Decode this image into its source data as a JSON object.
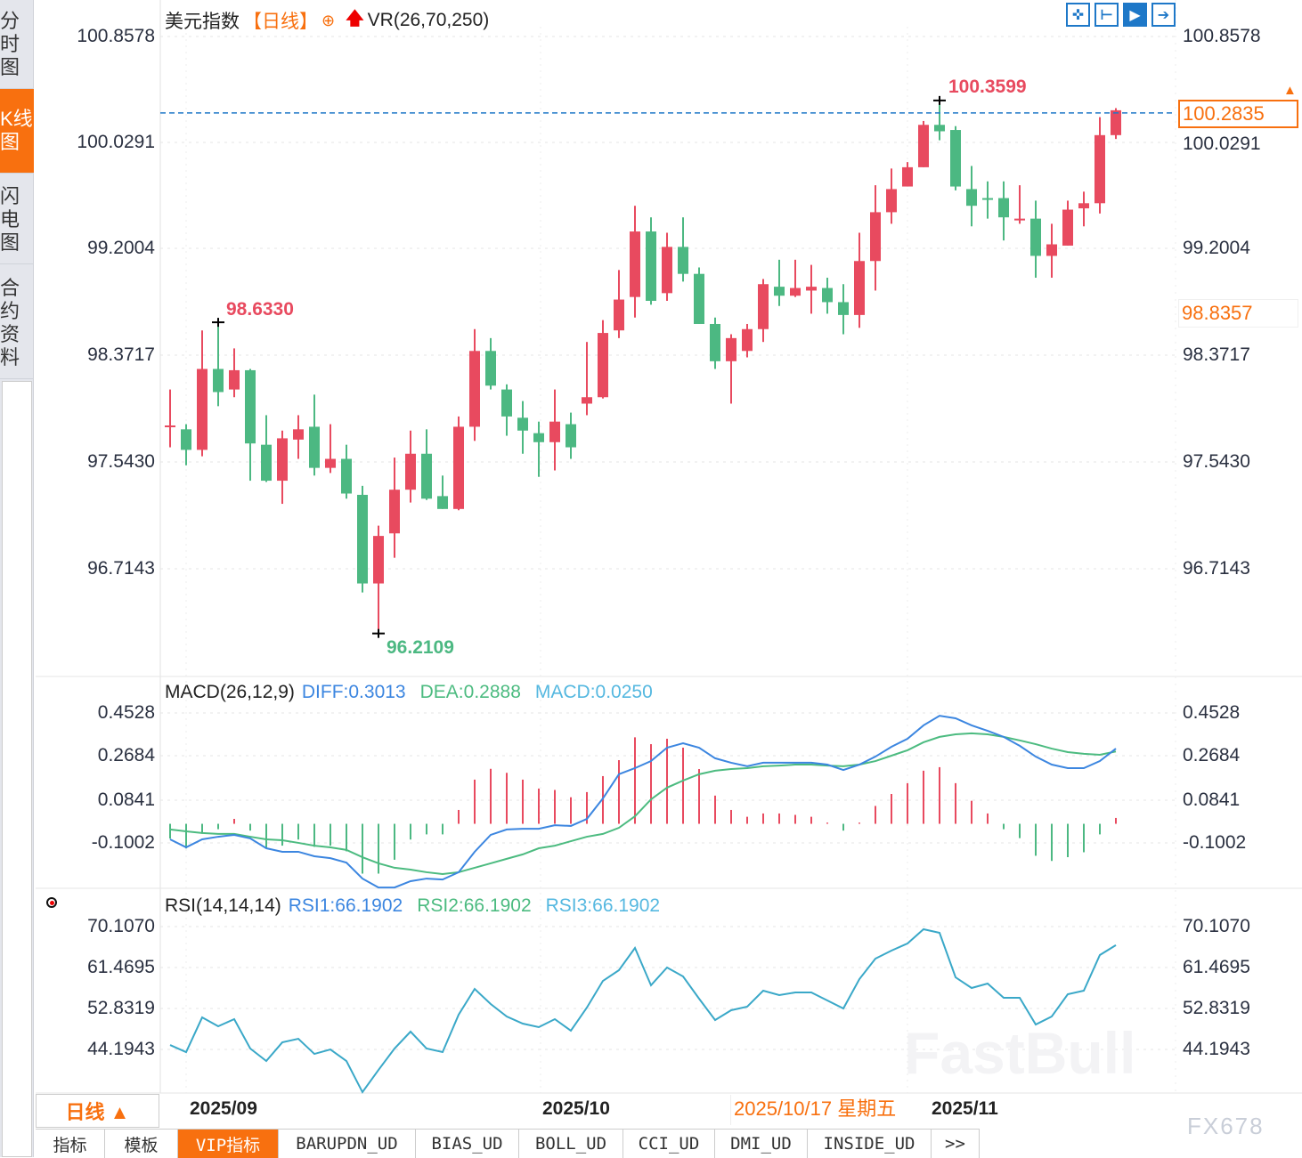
{
  "sidebar": {
    "tabs": [
      {
        "label": "分时图"
      },
      {
        "label": "K线图",
        "active": true
      },
      {
        "label": "闪电图"
      },
      {
        "label": "合约资料"
      }
    ]
  },
  "header": {
    "symbol": "美元指数",
    "period": "【日线】",
    "indicator": "VR(26,70,250)"
  },
  "toolbar": {
    "icons": [
      "crosshair-icon",
      "range-select-icon",
      "play-icon",
      "jump-to-end-icon"
    ]
  },
  "price_axis": {
    "ticks": [
      "100.8578",
      "100.0291",
      "99.2004",
      "98.3717",
      "97.5430",
      "96.7143"
    ],
    "current_price": "100.2835",
    "crosshair_price": "98.8357"
  },
  "annotations": {
    "high_left": "98.6330",
    "low": "96.2109",
    "high_right": "100.3599"
  },
  "macd": {
    "title": "MACD(26,12,9)",
    "diff": "DIFF:0.3013",
    "dea": "DEA:0.2888",
    "macd": "MACD:0.0250",
    "ticks": [
      "0.4528",
      "0.2684",
      "0.0841",
      "-0.1002"
    ]
  },
  "rsi": {
    "title": "RSI(14,14,14)",
    "rsi1": "RSI1:66.1902",
    "rsi2": "RSI2:66.1902",
    "rsi3": "RSI3:66.1902",
    "ticks": [
      "70.1070",
      "61.4695",
      "52.8319",
      "44.1943"
    ]
  },
  "xaxis": {
    "period_button": "日线 ▲",
    "dates": [
      "2025/09",
      "2025/10",
      "2025/11"
    ],
    "crosshair_date": "2025/10/17 星期五"
  },
  "bottom_tabs": [
    {
      "label": "指标"
    },
    {
      "label": "模板"
    },
    {
      "label": "VIP指标",
      "active": true
    },
    {
      "label": "BARUPDN_UD"
    },
    {
      "label": "BIAS_UD"
    },
    {
      "label": "BOLL_UD"
    },
    {
      "label": "CCI_UD"
    },
    {
      "label": "DMI_UD"
    },
    {
      "label": "INSIDE_UD"
    },
    {
      "label": ">>"
    }
  ],
  "watermark": {
    "brand": "FastBull",
    "code": "FX678"
  },
  "colors": {
    "up": "#e84a5f",
    "down": "#4cb882",
    "accent": "#f8700f",
    "diff": "#3c86e0",
    "dea": "#4cbb80",
    "macd": "#55b8e0",
    "rsi": "#3aa8c8"
  },
  "chart_data": {
    "type": "candlestick",
    "ylim": [
      96.2109,
      100.8578
    ],
    "ohlc": [
      [
        97.83,
        98.11,
        97.66,
        97.83
      ],
      [
        97.8,
        97.84,
        97.52,
        97.64
      ],
      [
        97.64,
        98.57,
        97.59,
        98.27
      ],
      [
        98.27,
        98.633,
        97.98,
        98.09
      ],
      [
        98.11,
        98.43,
        98.05,
        98.26
      ],
      [
        98.26,
        98.27,
        97.4,
        97.69
      ],
      [
        97.68,
        97.91,
        97.39,
        97.4
      ],
      [
        97.4,
        97.79,
        97.22,
        97.73
      ],
      [
        97.72,
        97.91,
        97.57,
        97.8
      ],
      [
        97.82,
        98.07,
        97.44,
        97.5
      ],
      [
        97.5,
        97.84,
        97.46,
        97.57
      ],
      [
        97.57,
        97.68,
        97.26,
        97.3
      ],
      [
        97.29,
        97.36,
        96.53,
        96.6
      ],
      [
        96.6,
        97.05,
        96.2109,
        96.97
      ],
      [
        96.99,
        97.58,
        96.8,
        97.33
      ],
      [
        97.33,
        97.79,
        97.23,
        97.61
      ],
      [
        97.61,
        97.8,
        97.25,
        97.26
      ],
      [
        97.28,
        97.44,
        97.18,
        97.18
      ],
      [
        97.18,
        97.9,
        97.17,
        97.82
      ],
      [
        97.82,
        98.58,
        97.71,
        98.41
      ],
      [
        98.41,
        98.51,
        98.11,
        98.14
      ],
      [
        98.11,
        98.15,
        97.75,
        97.9
      ],
      [
        97.89,
        98.02,
        97.61,
        97.79
      ],
      [
        97.77,
        97.86,
        97.43,
        97.7
      ],
      [
        97.7,
        98.11,
        97.48,
        97.86
      ],
      [
        97.84,
        97.93,
        97.57,
        97.66
      ],
      [
        98.0,
        98.48,
        97.91,
        98.05
      ],
      [
        98.05,
        98.65,
        98.04,
        98.55
      ],
      [
        98.57,
        99.04,
        98.51,
        98.81
      ],
      [
        98.83,
        99.54,
        98.67,
        99.34
      ],
      [
        99.34,
        99.45,
        98.77,
        98.8
      ],
      [
        98.86,
        99.33,
        98.8,
        99.22
      ],
      [
        99.22,
        99.45,
        98.95,
        99.01
      ],
      [
        99.01,
        99.06,
        98.62,
        98.62
      ],
      [
        98.62,
        98.67,
        98.27,
        98.33
      ],
      [
        98.33,
        98.54,
        98.0,
        98.51
      ],
      [
        98.41,
        98.62,
        98.36,
        98.58
      ],
      [
        98.58,
        98.97,
        98.48,
        98.93
      ],
      [
        98.91,
        99.12,
        98.76,
        98.84
      ],
      [
        98.84,
        99.12,
        98.83,
        98.9
      ],
      [
        98.88,
        99.08,
        98.7,
        98.91
      ],
      [
        98.9,
        98.98,
        98.7,
        98.79
      ],
      [
        98.79,
        98.93,
        98.54,
        98.69
      ],
      [
        98.69,
        99.33,
        98.59,
        99.11
      ],
      [
        99.11,
        99.7,
        98.88,
        99.49
      ],
      [
        99.49,
        99.83,
        99.4,
        99.67
      ],
      [
        99.69,
        99.88,
        99.69,
        99.84
      ],
      [
        99.84,
        100.2,
        99.84,
        100.17
      ],
      [
        100.17,
        100.3599,
        100.05,
        100.12
      ],
      [
        100.13,
        100.16,
        99.66,
        99.69
      ],
      [
        99.67,
        99.85,
        99.38,
        99.54
      ],
      [
        99.6,
        99.73,
        99.44,
        99.59
      ],
      [
        99.6,
        99.73,
        99.27,
        99.45
      ],
      [
        99.44,
        99.7,
        99.4,
        99.44
      ],
      [
        99.44,
        99.58,
        98.98,
        99.15
      ],
      [
        99.15,
        99.4,
        98.98,
        99.24
      ],
      [
        99.23,
        99.58,
        99.23,
        99.51
      ],
      [
        99.52,
        99.65,
        99.38,
        99.56
      ],
      [
        99.56,
        100.23,
        99.48,
        100.09
      ],
      [
        100.09,
        100.3,
        100.06,
        100.2835
      ]
    ],
    "macd_hist": [
      -0.063,
      -0.105,
      -0.042,
      -0.023,
      0.021,
      -0.029,
      -0.105,
      -0.093,
      -0.067,
      -0.098,
      -0.093,
      -0.117,
      -0.212,
      -0.212,
      -0.153,
      -0.067,
      -0.045,
      -0.045,
      0.059,
      0.188,
      0.234,
      0.217,
      0.188,
      0.15,
      0.144,
      0.113,
      0.135,
      0.203,
      0.271,
      0.368,
      0.339,
      0.362,
      0.324,
      0.233,
      0.12,
      0.059,
      0.03,
      0.044,
      0.044,
      0.038,
      0.03,
      0.005,
      -0.029,
      0.005,
      0.076,
      0.127,
      0.173,
      0.226,
      0.241,
      0.173,
      0.098,
      0.044,
      -0.023,
      -0.061,
      -0.136,
      -0.158,
      -0.142,
      -0.121,
      -0.045,
      0.025
    ],
    "diff": [
      -0.085,
      -0.119,
      -0.085,
      -0.074,
      -0.066,
      -0.081,
      -0.123,
      -0.138,
      -0.138,
      -0.157,
      -0.165,
      -0.184,
      -0.252,
      -0.29,
      -0.29,
      -0.263,
      -0.252,
      -0.256,
      -0.225,
      -0.138,
      -0.066,
      -0.043,
      -0.04,
      -0.04,
      -0.025,
      -0.028,
      0.002,
      0.089,
      0.192,
      0.218,
      0.248,
      0.305,
      0.324,
      0.305,
      0.26,
      0.241,
      0.226,
      0.241,
      0.241,
      0.241,
      0.241,
      0.233,
      0.21,
      0.233,
      0.267,
      0.309,
      0.343,
      0.4,
      0.441,
      0.43,
      0.4,
      0.377,
      0.351,
      0.313,
      0.267,
      0.233,
      0.218,
      0.218,
      0.248,
      0.301
    ],
    "dea": [
      -0.043,
      -0.051,
      -0.058,
      -0.062,
      -0.062,
      -0.074,
      -0.085,
      -0.089,
      -0.1,
      -0.112,
      -0.119,
      -0.13,
      -0.161,
      -0.187,
      -0.206,
      -0.214,
      -0.225,
      -0.233,
      -0.225,
      -0.206,
      -0.187,
      -0.168,
      -0.149,
      -0.123,
      -0.112,
      -0.093,
      -0.074,
      -0.062,
      -0.036,
      0.013,
      0.085,
      0.135,
      0.165,
      0.192,
      0.207,
      0.214,
      0.218,
      0.226,
      0.229,
      0.233,
      0.233,
      0.229,
      0.226,
      0.233,
      0.248,
      0.271,
      0.294,
      0.328,
      0.351,
      0.362,
      0.366,
      0.362,
      0.351,
      0.336,
      0.32,
      0.301,
      0.286,
      0.279,
      0.275,
      0.289
    ],
    "rsi": [
      45.13,
      43.63,
      50.95,
      49.08,
      50.58,
      44.38,
      41.75,
      45.69,
      46.44,
      43.25,
      44.19,
      41.75,
      35.18,
      39.87,
      44.38,
      47.95,
      44.38,
      43.63,
      51.52,
      56.96,
      53.77,
      51.14,
      49.64,
      48.89,
      50.58,
      48.14,
      53.02,
      58.65,
      60.91,
      65.6,
      57.72,
      61.47,
      59.59,
      54.9,
      50.39,
      52.46,
      53.21,
      56.59,
      55.65,
      56.21,
      56.21,
      54.52,
      52.83,
      59.03,
      63.35,
      65.04,
      66.54,
      69.54,
      68.79,
      59.4,
      57.15,
      58.09,
      55.08,
      55.08,
      49.45,
      51.14,
      55.83,
      56.59,
      64.1,
      66.19
    ]
  }
}
